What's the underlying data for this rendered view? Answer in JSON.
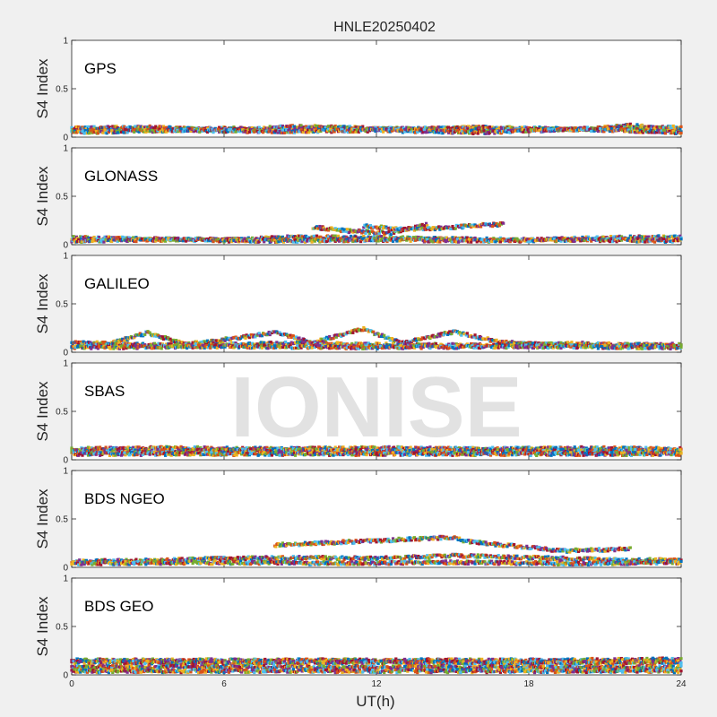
{
  "chart_data": {
    "title": "HNLE20250402",
    "xlabel": "UT(h)",
    "xlim": [
      0,
      24
    ],
    "xticks": [
      "0",
      "6",
      "12",
      "18",
      "24"
    ],
    "watermark": "IONISE",
    "series_colors": [
      "#0072BD",
      "#D95319",
      "#EDB120",
      "#7E2F8E",
      "#77AC30",
      "#4DBEEE",
      "#A2142F"
    ],
    "panels": [
      {
        "type": "scatter",
        "label": "GPS",
        "ylabel": "S4 Index",
        "ylim": [
          0,
          1
        ],
        "yticks": [
          "0",
          "0.5",
          "1"
        ],
        "series": [
          {
            "values": [
              [
                0,
                0.06
              ],
              [
                2,
                0.08
              ],
              [
                4,
                0.07
              ],
              [
                6,
                0.09
              ],
              [
                8,
                0.08
              ],
              [
                10,
                0.1
              ],
              [
                12,
                0.09
              ],
              [
                14,
                0.08
              ],
              [
                16,
                0.1
              ],
              [
                18,
                0.09
              ],
              [
                20,
                0.08
              ],
              [
                22,
                0.12
              ],
              [
                24,
                0.07
              ]
            ]
          },
          {
            "values": [
              [
                0,
                0.09
              ],
              [
                3,
                0.1
              ],
              [
                6,
                0.07
              ],
              [
                9,
                0.11
              ],
              [
                12,
                0.08
              ],
              [
                15,
                0.09
              ],
              [
                18,
                0.07
              ],
              [
                21,
                0.09
              ],
              [
                24,
                0.1
              ]
            ]
          },
          {
            "values": [
              [
                0,
                0.05
              ],
              [
                4,
                0.07
              ],
              [
                8,
                0.06
              ],
              [
                12,
                0.07
              ],
              [
                16,
                0.05
              ],
              [
                20,
                0.08
              ],
              [
                24,
                0.05
              ]
            ]
          }
        ]
      },
      {
        "type": "scatter",
        "label": "GLONASS",
        "ylabel": "S4 Index",
        "ylim": [
          0,
          1
        ],
        "yticks": [
          "0",
          "0.5",
          "1"
        ],
        "series": [
          {
            "values": [
              [
                0,
                0.07
              ],
              [
                3,
                0.06
              ],
              [
                6,
                0.05
              ],
              [
                9,
                0.08
              ],
              [
                12,
                0.07
              ],
              [
                15,
                0.06
              ],
              [
                18,
                0.05
              ],
              [
                21,
                0.07
              ],
              [
                24,
                0.08
              ]
            ]
          },
          {
            "values": [
              [
                9.5,
                0.18
              ],
              [
                11,
                0.14
              ],
              [
                12.5,
                0.12
              ],
              [
                14,
                0.21
              ]
            ]
          },
          {
            "values": [
              [
                11.5,
                0.19
              ],
              [
                13,
                0.16
              ],
              [
                14.5,
                0.17
              ],
              [
                16,
                0.2
              ],
              [
                17,
                0.21
              ]
            ]
          },
          {
            "values": [
              [
                0,
                0.04
              ],
              [
                4,
                0.05
              ],
              [
                8,
                0.04
              ],
              [
                12,
                0.05
              ],
              [
                16,
                0.04
              ],
              [
                20,
                0.05
              ],
              [
                24,
                0.04
              ]
            ]
          }
        ]
      },
      {
        "type": "scatter",
        "label": "GALILEO",
        "ylabel": "S4 Index",
        "ylim": [
          0,
          1
        ],
        "yticks": [
          "0",
          "0.5",
          "1"
        ],
        "series": [
          {
            "values": [
              [
                0,
                0.06
              ],
              [
                1.5,
                0.09
              ],
              [
                3,
                0.2
              ],
              [
                4.5,
                0.08
              ],
              [
                8,
                0.2
              ],
              [
                9.5,
                0.1
              ],
              [
                11.5,
                0.24
              ],
              [
                13,
                0.09
              ],
              [
                15,
                0.21
              ],
              [
                17,
                0.1
              ],
              [
                20,
                0.07
              ],
              [
                24,
                0.08
              ]
            ]
          },
          {
            "values": [
              [
                0,
                0.1
              ],
              [
                4,
                0.07
              ],
              [
                8,
                0.09
              ],
              [
                12,
                0.08
              ],
              [
                16,
                0.07
              ],
              [
                20,
                0.09
              ],
              [
                24,
                0.06
              ]
            ]
          },
          {
            "values": [
              [
                0,
                0.05
              ],
              [
                6,
                0.06
              ],
              [
                12,
                0.05
              ],
              [
                18,
                0.06
              ],
              [
                24,
                0.05
              ]
            ]
          }
        ]
      },
      {
        "type": "scatter",
        "label": "SBAS",
        "ylabel": "S4 Index",
        "ylim": [
          0,
          1
        ],
        "yticks": [
          "0",
          "0.5",
          "1"
        ],
        "series": [
          {
            "values": [
              [
                0,
                0.11
              ],
              [
                4,
                0.12
              ],
              [
                8,
                0.11
              ],
              [
                12,
                0.12
              ],
              [
                16,
                0.11
              ],
              [
                20,
                0.12
              ],
              [
                24,
                0.11
              ]
            ]
          },
          {
            "values": [
              [
                0,
                0.09
              ],
              [
                4,
                0.09
              ],
              [
                8,
                0.1
              ],
              [
                12,
                0.09
              ],
              [
                16,
                0.09
              ],
              [
                20,
                0.09
              ],
              [
                24,
                0.09
              ]
            ]
          },
          {
            "values": [
              [
                0,
                0.06
              ],
              [
                4,
                0.06
              ],
              [
                8,
                0.06
              ],
              [
                12,
                0.06
              ],
              [
                16,
                0.06
              ],
              [
                20,
                0.06
              ],
              [
                24,
                0.06
              ]
            ]
          }
        ]
      },
      {
        "type": "scatter",
        "label": "BDS NGEO",
        "ylabel": "S4 Index",
        "ylim": [
          0,
          1
        ],
        "yticks": [
          "0",
          "0.5",
          "1"
        ],
        "series": [
          {
            "values": [
              [
                0,
                0.06
              ],
              [
                3,
                0.07
              ],
              [
                6,
                0.09
              ],
              [
                9,
                0.1
              ],
              [
                12,
                0.09
              ],
              [
                15,
                0.12
              ],
              [
                18,
                0.1
              ],
              [
                21,
                0.08
              ],
              [
                24,
                0.07
              ]
            ]
          },
          {
            "values": [
              [
                8,
                0.23
              ],
              [
                15.1,
                0.31
              ],
              [
                15.4,
                0.27
              ],
              [
                19.4,
                0.17
              ],
              [
                22,
                0.19
              ]
            ]
          },
          {
            "values": [
              [
                0,
                0.04
              ],
              [
                5,
                0.05
              ],
              [
                10,
                0.04
              ],
              [
                15,
                0.05
              ],
              [
                20,
                0.04
              ],
              [
                24,
                0.05
              ]
            ]
          }
        ]
      },
      {
        "type": "scatter",
        "label": "BDS GEO",
        "ylabel": "S4 Index",
        "ylim": [
          0,
          1
        ],
        "yticks": [
          "0",
          "0.5",
          "1"
        ],
        "series": [
          {
            "values": [
              [
                0,
                0.15
              ],
              [
                6,
                0.15
              ],
              [
                12,
                0.15
              ],
              [
                18,
                0.15
              ],
              [
                24,
                0.16
              ]
            ]
          },
          {
            "values": [
              [
                0,
                0.13
              ],
              [
                6,
                0.12
              ],
              [
                12,
                0.13
              ],
              [
                18,
                0.12
              ],
              [
                24,
                0.13
              ]
            ]
          },
          {
            "values": [
              [
                0,
                0.08
              ],
              [
                6,
                0.08
              ],
              [
                12,
                0.08
              ],
              [
                18,
                0.08
              ],
              [
                24,
                0.08
              ]
            ]
          },
          {
            "values": [
              [
                0,
                0.04
              ],
              [
                6,
                0.04
              ],
              [
                12,
                0.04
              ],
              [
                18,
                0.04
              ],
              [
                24,
                0.04
              ]
            ]
          }
        ]
      }
    ]
  }
}
